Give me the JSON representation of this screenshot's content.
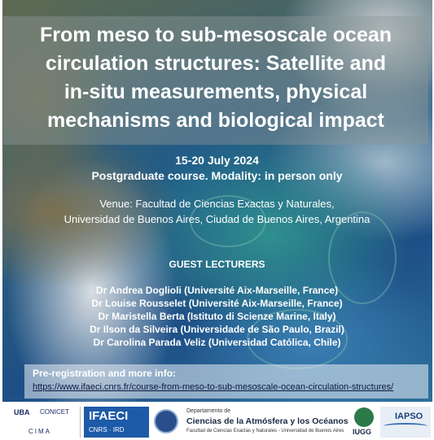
{
  "title_lines": [
    "From meso to sub-mesoscale ocean",
    "circulation structures: Satellite and",
    "in-situ measurements, physical",
    "mechanisms and biological impact"
  ],
  "dates": "15-20 July 2024",
  "modality": "Postgraduate course. Modality: in person only",
  "venue_lines": [
    "Venue: Facultad de Ciencias Exactas y Naturales,",
    "Universidad de Buenos Aires, Ciudad de Buenos Aires, Argentina"
  ],
  "guest_heading": "GUEST LECTURERS",
  "lecturers": [
    "Dr Andrea Doglioli (Université Aix-Marseille, France)",
    "Dr Louise Rousselet (Université Aix-Marseille, France)",
    "Dr Maristella Berta (Istituto di Scienze Marine, Italy)",
    "Dr Ilson da Silveira (Universidade de São Paulo, Brazil)",
    "Dr Carolina Parada Veliz (Universidad Católica, Chile)"
  ],
  "registration_label": "Pre-registration and more info:",
  "registration_url": "https://www.ifaeci.cnrs.fr/course-from-meso-to-sub-mesoscale-ocean-circulation-structures/",
  "logos": {
    "uba": "UBA",
    "conicet": "CONICET",
    "cima": "CIMA",
    "ifaeci": "IFAECI",
    "ifaeci_sub": "CNRS · IRD",
    "dept_small": "Departamento de",
    "dept_name": "Ciencias de la Atmósfera y los Océanos",
    "dept_sub": "Facultad de Ciencias Exactas y Naturales - Universidad de Buenos Aires",
    "iugg": "IUGG",
    "iapso": "IAPSO"
  }
}
